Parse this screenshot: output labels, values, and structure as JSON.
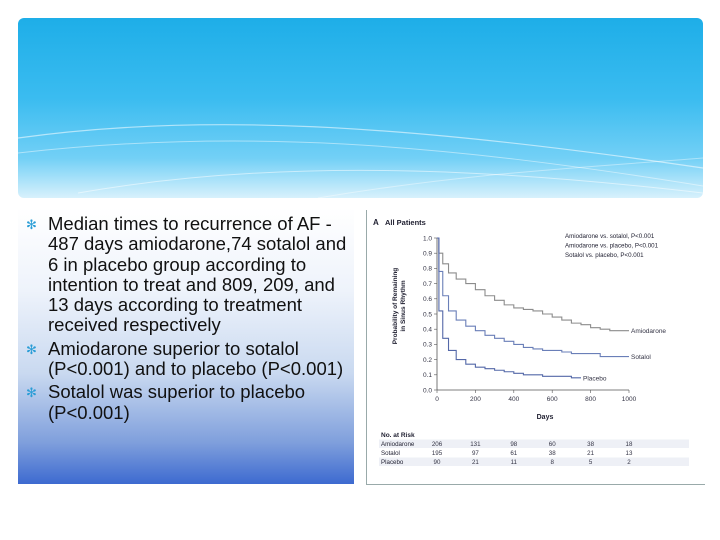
{
  "bullets": [
    "Median times to recurrence of AF - 487 days amiodarone,74 sotalol  and 6  in placebo group according to intention to treat and 809, 209, and 13 days according to treatment received respectively",
    "Amiodarone superior to sotalol (P<0.001) and to placebo (P<0.001)",
    "Sotalol was superior to placebo (P<0.001)"
  ],
  "chart_data": {
    "type": "line",
    "panel_label": "A",
    "title": "All Patients",
    "xlabel": "Days",
    "ylabel_line1": "Probability of Remaining",
    "ylabel_line2": "in Sinus Rhythm",
    "xlim": [
      0,
      1000
    ],
    "ylim": [
      0,
      1.0
    ],
    "x_ticks": [
      "0",
      "200",
      "400",
      "600",
      "800",
      "1000"
    ],
    "y_ticks": [
      "0.0",
      "0.1",
      "0.2",
      "0.3",
      "0.4",
      "0.5",
      "0.6",
      "0.7",
      "0.8",
      "0.9",
      "1.0"
    ],
    "comparisons": [
      "Amiodarone vs. sotalol, P<0.001",
      "Amiodarone vs. placebo, P<0.001",
      "Sotalol vs. placebo, P<0.001"
    ],
    "series": [
      {
        "name": "Amiodarone",
        "color": "#8c8c8c",
        "x": [
          0,
          10,
          30,
          60,
          100,
          150,
          200,
          250,
          300,
          350,
          400,
          450,
          500,
          550,
          600,
          650,
          700,
          750,
          800,
          850,
          900,
          950,
          1000
        ],
        "y": [
          1.0,
          0.9,
          0.83,
          0.77,
          0.73,
          0.7,
          0.66,
          0.62,
          0.59,
          0.56,
          0.54,
          0.53,
          0.52,
          0.5,
          0.48,
          0.46,
          0.44,
          0.43,
          0.41,
          0.4,
          0.39,
          0.39,
          0.39
        ]
      },
      {
        "name": "Sotalol",
        "color": "#6a7fb8",
        "x": [
          0,
          10,
          30,
          60,
          100,
          150,
          200,
          250,
          300,
          350,
          400,
          450,
          500,
          550,
          600,
          650,
          700,
          750,
          800,
          850,
          900,
          950,
          1000
        ],
        "y": [
          1.0,
          0.78,
          0.62,
          0.52,
          0.46,
          0.42,
          0.39,
          0.36,
          0.34,
          0.32,
          0.3,
          0.28,
          0.27,
          0.26,
          0.26,
          0.25,
          0.24,
          0.24,
          0.24,
          0.22,
          0.22,
          0.22,
          0.22
        ]
      },
      {
        "name": "Placebo",
        "color": "#5468a8",
        "x": [
          0,
          10,
          30,
          60,
          100,
          150,
          200,
          250,
          300,
          350,
          400,
          450,
          500,
          550,
          600,
          650,
          700,
          750
        ],
        "y": [
          1.0,
          0.52,
          0.34,
          0.26,
          0.2,
          0.17,
          0.15,
          0.14,
          0.13,
          0.12,
          0.11,
          0.1,
          0.1,
          0.09,
          0.09,
          0.09,
          0.08,
          0.08
        ]
      }
    ],
    "at_risk": {
      "title": "No. at Risk",
      "columns": [
        "0",
        "200",
        "400",
        "600",
        "800",
        "1000"
      ],
      "rows": [
        {
          "label": "Amiodarone",
          "values": [
            "206",
            "131",
            "98",
            "60",
            "38",
            "18"
          ]
        },
        {
          "label": "Sotalol",
          "values": [
            "195",
            "97",
            "61",
            "38",
            "21",
            "13"
          ]
        },
        {
          "label": "Placebo",
          "values": [
            "90",
            "21",
            "11",
            "8",
            "5",
            "2"
          ]
        }
      ]
    }
  }
}
